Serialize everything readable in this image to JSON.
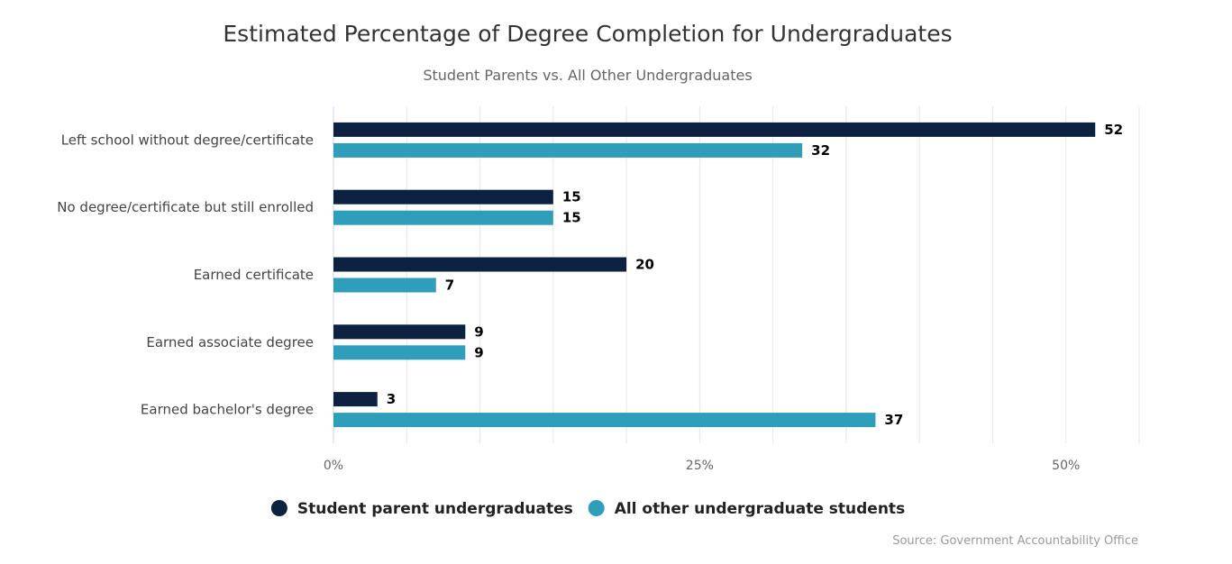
{
  "chart_data": {
    "type": "bar",
    "orientation": "horizontal",
    "title": "Estimated Percentage of Degree Completion for Undergraduates",
    "subtitle": "Student Parents vs. All Other Undergraduates",
    "categories": [
      "Left school without degree/certificate",
      "No degree/certificate but still enrolled",
      "Earned certificate",
      "Earned associate degree",
      "Earned bachelor's degree"
    ],
    "series": [
      {
        "name": "Student parent undergraduates",
        "color": "#0d2240",
        "values": [
          52,
          15,
          20,
          9,
          3
        ]
      },
      {
        "name": "All other undergraduate students",
        "color": "#2e9ebb",
        "values": [
          32,
          15,
          7,
          9,
          37
        ]
      }
    ],
    "xlim": [
      0,
      55
    ],
    "x_ticks": [
      {
        "value": 0,
        "label": "0%"
      },
      {
        "value": 25,
        "label": "25%"
      },
      {
        "value": 50,
        "label": "50%"
      }
    ],
    "grid_step": 5,
    "grid": true,
    "legend_position": "bottom-center",
    "source": "Source: Government Accountability Office"
  }
}
